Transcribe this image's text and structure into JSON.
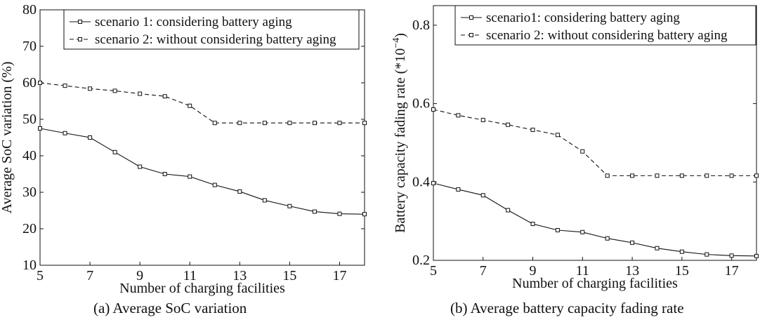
{
  "chart_data": [
    {
      "type": "line",
      "caption": "(a) Average SoC variation",
      "xlabel": "Number of charging facilities",
      "ylabel": "Average SoC variation (%)",
      "xlim": [
        5,
        18
      ],
      "ylim": [
        10,
        80
      ],
      "xticks": [
        "5",
        "7",
        "9",
        "11",
        "13",
        "15",
        "17"
      ],
      "yticks": [
        "10",
        "20",
        "30",
        "40",
        "50",
        "60",
        "70",
        "80"
      ],
      "legend_position": "top-right",
      "x": [
        5,
        6,
        7,
        8,
        9,
        10,
        11,
        12,
        13,
        14,
        15,
        16,
        17,
        18
      ],
      "series": [
        {
          "name": "scenario 1: considering battery aging",
          "style": "solid",
          "values": [
            47.5,
            46.2,
            45.0,
            41.0,
            37.0,
            35.0,
            34.3,
            32.0,
            30.2,
            27.8,
            26.2,
            24.7,
            24.1,
            24.0
          ]
        },
        {
          "name": "scenario 2: without considering battery aging",
          "style": "dashed",
          "values": [
            60.0,
            59.2,
            58.4,
            57.8,
            57.0,
            56.3,
            53.7,
            49.0,
            49.0,
            49.0,
            49.0,
            49.0,
            49.0,
            49.0
          ]
        }
      ]
    },
    {
      "type": "line",
      "caption": "(b) Average battery capacity fading rate",
      "xlabel": "Number of charging facilities",
      "ylabel": "Battery capacity fading rate (*10",
      "ylabel_exponent": "−4",
      "ylabel_close": ")",
      "xlim": [
        5,
        18
      ],
      "ylim": [
        0.2,
        0.85
      ],
      "xticks": [
        "5",
        "7",
        "9",
        "11",
        "13",
        "15",
        "17"
      ],
      "yticks": [
        "0.2",
        "0.4",
        "0.6",
        "0.8"
      ],
      "legend_position": "top-right",
      "x": [
        5,
        6,
        7,
        8,
        9,
        10,
        11,
        12,
        13,
        14,
        15,
        16,
        17,
        18
      ],
      "series": [
        {
          "name": "scenario1: considering battery aging",
          "style": "solid",
          "values": [
            0.397,
            0.381,
            0.366,
            0.328,
            0.293,
            0.277,
            0.272,
            0.256,
            0.245,
            0.231,
            0.222,
            0.215,
            0.212,
            0.211
          ]
        },
        {
          "name": "scenario 2: without considering battery aging",
          "style": "dashed",
          "values": [
            0.585,
            0.57,
            0.558,
            0.546,
            0.533,
            0.52,
            0.478,
            0.416,
            0.416,
            0.416,
            0.416,
            0.416,
            0.416,
            0.416
          ]
        }
      ]
    }
  ]
}
